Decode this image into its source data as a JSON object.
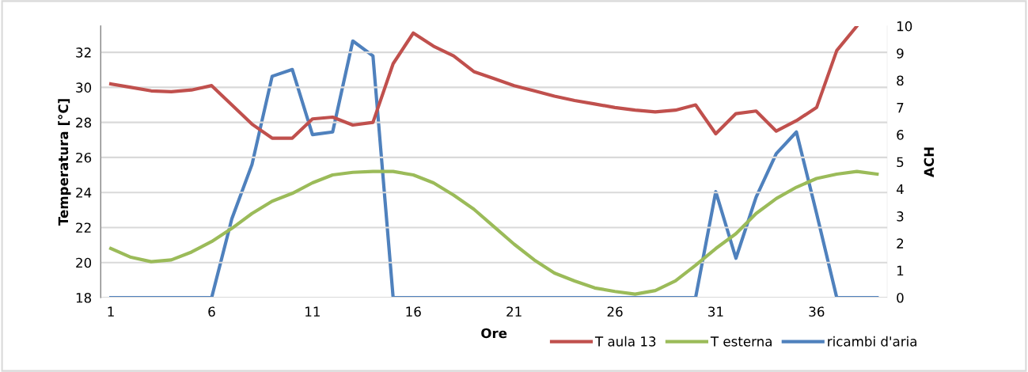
{
  "chart_data": {
    "type": "line",
    "xlabel": "Ore",
    "ylabel": "Temperatura [°C]",
    "y2label": "ACH",
    "x": [
      1,
      2,
      3,
      4,
      5,
      6,
      7,
      8,
      9,
      10,
      11,
      12,
      13,
      14,
      15,
      16,
      17,
      18,
      19,
      20,
      21,
      22,
      23,
      24,
      25,
      26,
      27,
      28,
      29,
      30,
      31,
      32,
      33,
      34,
      35,
      36,
      37,
      38,
      39
    ],
    "xlim": [
      0.5,
      39.5
    ],
    "xticks": [
      1,
      6,
      11,
      16,
      21,
      26,
      31,
      36
    ],
    "ylim": [
      18,
      33.5
    ],
    "yticks": [
      18,
      20,
      22,
      24,
      26,
      28,
      30,
      32
    ],
    "y2lim": [
      0,
      10
    ],
    "y2ticks": [
      0,
      1,
      2,
      3,
      4,
      5,
      6,
      7,
      8,
      9,
      10
    ],
    "grid": "y",
    "legend": "bottom",
    "marker": "none",
    "line_style": "solid",
    "series": [
      {
        "name": "T aula 13",
        "color": "#c0504d",
        "values": [
          30.2,
          30.0,
          29.8,
          29.75,
          29.85,
          30.1,
          29.0,
          27.9,
          27.1,
          27.1,
          28.2,
          28.3,
          27.85,
          28.0,
          31.35,
          33.1,
          32.35,
          31.8,
          30.9,
          30.5,
          30.1,
          29.8,
          29.5,
          29.25,
          29.05,
          28.85,
          28.7,
          28.6,
          28.7,
          29.0,
          27.35,
          28.5,
          28.65,
          27.5,
          28.1,
          28.85,
          32.1,
          33.5,
          null
        ]
      },
      {
        "name": "T esterna",
        "color": "#9bbb59",
        "values": [
          20.8,
          20.3,
          20.05,
          20.15,
          20.6,
          21.2,
          21.95,
          22.8,
          23.5,
          23.95,
          24.55,
          25.0,
          25.15,
          25.2,
          25.2,
          25.0,
          24.55,
          23.85,
          23.05,
          22.05,
          21.05,
          20.15,
          19.4,
          18.95,
          18.55,
          18.35,
          18.2,
          18.4,
          18.95,
          19.85,
          20.8,
          21.65,
          22.8,
          23.65,
          24.3,
          24.8,
          25.05,
          25.2,
          25.05
        ]
      },
      {
        "name": "ricambi d'aria",
        "color": "#4f81bd",
        "axis": "y2",
        "values": [
          0,
          0,
          0,
          0,
          0,
          0,
          2.9,
          4.9,
          8.15,
          8.4,
          6.0,
          6.1,
          9.45,
          8.9,
          0,
          0,
          0,
          0,
          0,
          0,
          0,
          0,
          0,
          0,
          0,
          0,
          0,
          0,
          0,
          0,
          3.9,
          1.45,
          3.7,
          5.3,
          6.1,
          3.1,
          0,
          0,
          0
        ]
      }
    ]
  }
}
